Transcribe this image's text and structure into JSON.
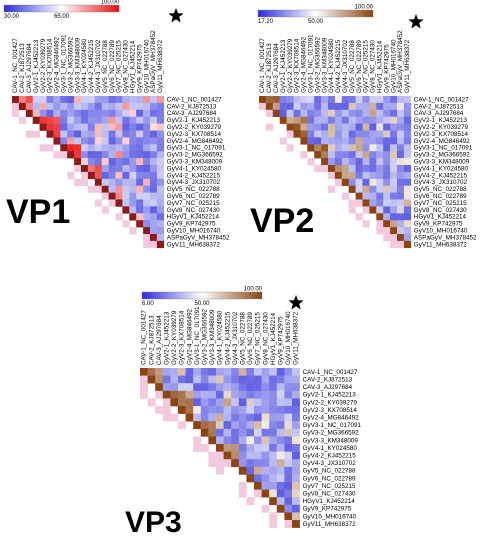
{
  "panels": [
    {
      "id": "vp1",
      "title": "VP1",
      "scale": {
        "min": "30.00",
        "mid": "65.00",
        "max": "100.00",
        "colors": [
          "#2b2bd9",
          "#ffffff",
          "#e81010"
        ]
      },
      "starred": "ASPaGyV_MH378452",
      "top_labels": [
        "CAV-1_NC_001427",
        "CAV-2_KJ872513",
        "CAV-3_AJ297684",
        "GyV2-1_KJ452213",
        "GyV2-2_KY039279",
        "GyV2-3_KX708514",
        "GyV2-4_MG846492",
        "GyV3-1_NC_017091",
        "GyV3-2_MG366592",
        "GyV3-3_KM348009",
        "GyV4-1_KY024580",
        "GyV4-2_KJ452215",
        "GyV4-3_JX310702",
        "GyV5_NC_022788",
        "GyV6_NC_022789",
        "GyV7_NC_025215",
        "GyV8_NC_027430",
        "HGyV1_KJ452214",
        "GyV9_KP742975",
        "GyV10_MH016740",
        "ASPaGyV_MH378452",
        "GyV11_MH638372"
      ],
      "right_labels": [
        "CAV-1_NC_001427",
        "CAV-2_KJ872513",
        "CAV-3_AJ297684",
        "GyV2-1_KJ452213",
        "GyV2-2_KY039279",
        "GyV2-3_KX708514",
        "GyV2-4_MG846492",
        "GyV3-1_NC_017091",
        "GyV3-2_MG366592",
        "GyV3-3_KM348009",
        "GyV4-1_KY024580",
        "GyV4-2_KJ452215",
        "GyV4-3_JX310702",
        "GyV5_NC_022788",
        "GyV6_NC_022789",
        "GyV7_NC_025215",
        "GyV8_NC_027430",
        "HGyV1_KJ452214",
        "GyV9_KP742975",
        "GyV10_MH016740",
        "ASPaGyV_MH378452",
        "GyV11_MH638372"
      ]
    },
    {
      "id": "vp2",
      "title": "VP2",
      "scale": {
        "min": "17.20",
        "mid": "50.00",
        "max": "100.00",
        "colors": [
          "#2b2bd9",
          "#ffffff",
          "#8b4513"
        ]
      },
      "starred": "ASPaGyV_MH378452",
      "top_labels": [
        "CAV-1_NC_001427",
        "CAV-2_KJ872513",
        "CAV-3_AJ297684",
        "GyV2-1_KJ452213",
        "GyV2-2_KY039279",
        "GyV2-3_KX708514",
        "GyV2-4_MG846492",
        "GyV3-1_NC_017091",
        "GyV3-2_MG366592",
        "GyV3-3_KM348009",
        "GyV4-1_KY024580",
        "GyV4-2_KJ452215",
        "GyV4-3_JX310702",
        "GyV5_NC_022788",
        "GyV6_NC_022789",
        "GyV7_NC_025215",
        "GyV8_NC_027430",
        "HGyV1_KJ452214",
        "GyV9_KP742975",
        "GyV10_MH016740",
        "ASPaGyV_MH378452",
        "GyV11_MH638372"
      ],
      "right_labels": [
        "CAV-1_NC_001427",
        "CAV-2_KJ872513",
        "CAV-3_AJ297684",
        "GyV2-1_KJ452213",
        "GyV2-2_KY039279",
        "GyV2-3_KX708514",
        "GyV2-4_MG846492",
        "GyV3-1_NC_017091",
        "GyV3-2_MG366592",
        "GyV3-3_KM348009",
        "GyV4-1_KY024580",
        "GyV4-2_KJ452215",
        "GyV4-3_JX310702",
        "GyV5_NC_022788",
        "GyV6_NC_022789",
        "GyV7_NC_025215",
        "GyV8_NC_027430",
        "HGyV1_KJ452214",
        "GyV9_KP742975",
        "GyV10_MH016740",
        "ASPaGyV_MH378452",
        "GyV11_MH638372"
      ]
    },
    {
      "id": "vp3",
      "title": "VP3",
      "scale": {
        "min": "6.00",
        "mid": "50.00",
        "max": "100.00",
        "colors": [
          "#2b2bd9",
          "#ffffff",
          "#8b4513"
        ]
      },
      "starred": "GyV10_MH016740",
      "top_labels": [
        "CAV-1_NC_001427",
        "CAV-2_KJ872513",
        "CAV-3_AJ297684",
        "GyV2-1_KJ452213",
        "GyV2-2_KY039279",
        "GyV2-3_KX708514",
        "GyV2-4_MG846492",
        "GyV3-1_NC_017091",
        "GyV3-2_MG366592",
        "GyV3-3_KM348009",
        "GyV4-1_KY024580",
        "GyV4-2_KJ452215",
        "GyV4-3_JX310702",
        "GyV5_NC_022788",
        "GyV6_NC_022789",
        "GyV7_NC_025215",
        "GyV8_NC_027430",
        "HGyV1_KJ452214",
        "GyV9_KP742975",
        "GyV10_MH016740",
        "GyV11_MH638372"
      ],
      "right_labels": [
        "CAV-1_NC_001427",
        "CAV-2_KJ872513",
        "CAV-3_AJ297684",
        "GyV2-1_KJ452213",
        "GyV2-2_KY039279",
        "GyV2-3_KX708514",
        "GyV2-4_MG846492",
        "GyV3-1_NC_017091",
        "GyV3-2_MG366592",
        "GyV3-3_KM348009",
        "GyV4-1_KY024580",
        "GyV4-2_KJ452215",
        "GyV4-3_JX310702",
        "GyV5_NC_022788",
        "GyV6_NC_022789",
        "GyV7_NC_025215",
        "GyV8_NC_027430",
        "HGyV1_KJ452214",
        "GyV9_KP742975",
        "GyV10_MH016740",
        "GyV11_MH638372"
      ]
    }
  ]
}
